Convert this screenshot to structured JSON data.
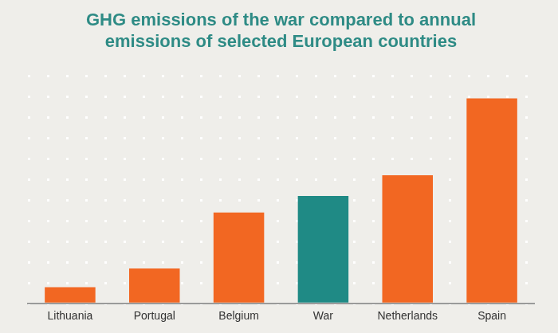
{
  "chart_data": {
    "type": "bar",
    "title": [
      "GHG emissions of the war compared to annual",
      "emissions of selected European countries"
    ],
    "categories": [
      "Lithuania",
      "Portugal",
      "Belgium",
      "War",
      "Netherlands",
      "Spain"
    ],
    "values": [
      0.8,
      1.7,
      4.4,
      5.2,
      6.2,
      9.9
    ],
    "colors": [
      "#f26722",
      "#f26722",
      "#f26722",
      "#1f8a85",
      "#f26722",
      "#f26722"
    ],
    "ylim": [
      0,
      11
    ],
    "yticks": [
      0,
      1,
      2,
      3,
      4,
      5,
      6,
      7,
      8,
      9,
      10,
      11
    ],
    "grid": true,
    "tick_labels": "x"
  }
}
